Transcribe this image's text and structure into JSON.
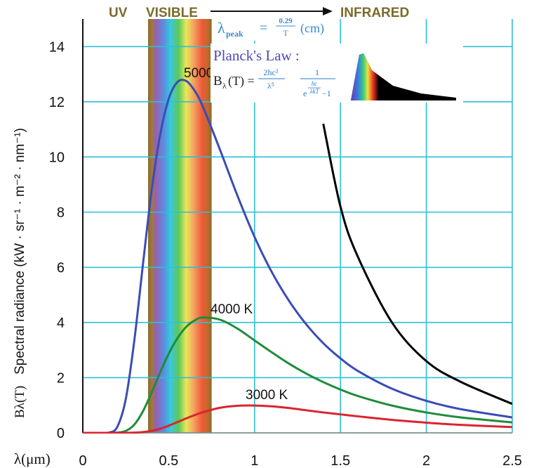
{
  "chart_data": {
    "type": "line",
    "header": {
      "uv": "UV",
      "visible": "VISIBLE",
      "infrared": "INFRARED"
    },
    "peak_formula": {
      "symbol": "λ",
      "sub": "peak",
      "eq": "=",
      "num": "0.29",
      "den": "T",
      "unit": "(cm)"
    },
    "planck_law": {
      "title": "Planck's Law :",
      "symbol": "B",
      "sub": "λ",
      "arg": "(T) =",
      "num1": "2hc²",
      "den1": "λ⁵",
      "num2": "1",
      "exp_base": "e",
      "exp_num": "hc",
      "exp_den": "λkT",
      "den_tail": "−1"
    },
    "x_label": "λ(μm)",
    "y_label_symbol": "Bλ(T)",
    "y_label": "Spectral radiance (kW · sr⁻¹ · m⁻² · nm⁻¹)",
    "x": [
      0,
      0.1,
      0.15,
      0.2,
      0.25,
      0.3,
      0.35,
      0.4,
      0.45,
      0.5,
      0.55,
      0.6,
      0.65,
      0.7,
      0.8,
      0.9,
      1,
      1.1,
      1.2,
      1.3,
      1.4,
      1.5,
      1.6,
      1.8,
      2,
      2.2,
      2.5
    ],
    "series": [
      {
        "name": "5000 K",
        "color": "#3b4cb4",
        "values": [
          0,
          0,
          0.01,
          0.21,
          1.22,
          3.35,
          6.1,
          8.75,
          10.79,
          12.1,
          12.71,
          12.76,
          12.41,
          11.81,
          10.24,
          8.6,
          7.1,
          5.83,
          4.79,
          3.94,
          3.25,
          2.7,
          2.25,
          1.6,
          1.16,
          0.86,
          0.56
        ]
      },
      {
        "name": "4000 K",
        "color": "#1f8c3b",
        "values": [
          0,
          0,
          0,
          0.01,
          0.07,
          0.3,
          0.78,
          1.45,
          2.18,
          2.87,
          3.42,
          3.83,
          4.07,
          4.18,
          4.1,
          3.78,
          3.35,
          2.92,
          2.51,
          2.15,
          1.84,
          1.57,
          1.34,
          0.99,
          0.74,
          0.56,
          0.38
        ]
      },
      {
        "name": "3000 K",
        "color": "#d9252e",
        "values": [
          0,
          0,
          0,
          0,
          0,
          0.01,
          0.03,
          0.07,
          0.15,
          0.26,
          0.39,
          0.52,
          0.64,
          0.75,
          0.91,
          0.98,
          0.99,
          0.96,
          0.9,
          0.82,
          0.74,
          0.67,
          0.6,
          0.47,
          0.37,
          0.29,
          0.21
        ]
      },
      {
        "color": "#000000",
        "values": [
          null,
          null,
          null,
          null,
          null,
          null,
          null,
          null,
          null,
          null,
          null,
          null,
          null,
          null,
          null,
          null,
          null,
          null,
          null,
          null,
          11.2,
          8.2,
          6.4,
          4.0,
          2.6,
          1.85,
          1.05
        ]
      }
    ],
    "xlim": [
      0,
      2.5
    ],
    "ylim": [
      0,
      15
    ],
    "xticks": [
      0,
      0.5,
      1,
      1.5,
      2,
      2.5
    ],
    "yticks": [
      0,
      2,
      4,
      6,
      8,
      10,
      12,
      14
    ],
    "grid": true,
    "visible_band": [
      0.38,
      0.75
    ]
  }
}
